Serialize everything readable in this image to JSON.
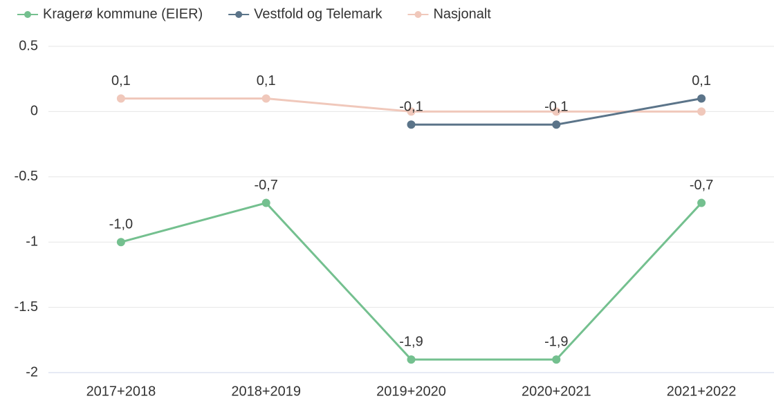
{
  "chart_data": {
    "type": "line",
    "categories": [
      "2017+2018",
      "2018+2019",
      "2019+2020",
      "2020+2021",
      "2021+2022"
    ],
    "series": [
      {
        "name": "Kragerø kommune (EIER)",
        "color": "#74c08f",
        "values": [
          -1.0,
          -0.7,
          -1.9,
          -1.9,
          -0.7
        ],
        "value_labels": [
          "-1,0",
          "-0,7",
          "-1,9",
          "-1,9",
          "-0,7"
        ]
      },
      {
        "name": "Vestfold og Telemark",
        "color": "#5b7489",
        "values": [
          null,
          null,
          -0.1,
          -0.1,
          0.1
        ],
        "value_labels": [
          null,
          null,
          "-0,1",
          "-0,1",
          "0,1"
        ]
      },
      {
        "name": "Nasjonalt",
        "color": "#f0c8bb",
        "values": [
          0.1,
          0.1,
          0,
          0,
          0
        ],
        "value_labels": [
          "0,1",
          "0,1",
          null,
          null,
          null
        ]
      }
    ],
    "ylim": [
      -2,
      0.5
    ],
    "yticks": [
      0.5,
      0,
      -0.5,
      -1,
      -1.5,
      -2
    ],
    "grid": true,
    "legend": "top"
  }
}
